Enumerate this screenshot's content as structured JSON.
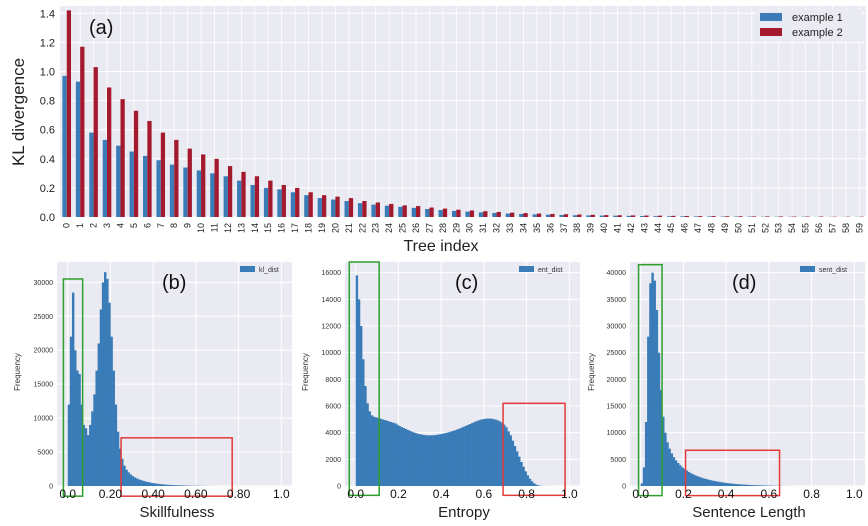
{
  "chart_data": [
    {
      "type": "bar",
      "panel_label": "(a)",
      "xlabel": "Tree index",
      "ylabel": "KL divergence",
      "ylim": [
        0,
        1.45
      ],
      "yticks": [
        "0.0",
        "0.2",
        "0.4",
        "0.6",
        "0.8",
        "1.0",
        "1.2",
        "1.4"
      ],
      "categories": [
        "0",
        "1",
        "2",
        "3",
        "4",
        "5",
        "6",
        "7",
        "8",
        "9",
        "10",
        "11",
        "12",
        "13",
        "14",
        "15",
        "16",
        "17",
        "18",
        "19",
        "20",
        "21",
        "22",
        "23",
        "24",
        "25",
        "26",
        "27",
        "28",
        "29",
        "30",
        "31",
        "32",
        "33",
        "34",
        "35",
        "36",
        "37",
        "38",
        "39",
        "40",
        "41",
        "42",
        "43",
        "44",
        "45",
        "46",
        "47",
        "48",
        "49",
        "50",
        "51",
        "52",
        "53",
        "54",
        "55",
        "56",
        "57",
        "58",
        "59"
      ],
      "series": [
        {
          "name": "example 1",
          "color": "#3a7cb8",
          "values": [
            0.97,
            0.93,
            0.58,
            0.53,
            0.49,
            0.45,
            0.42,
            0.39,
            0.36,
            0.34,
            0.32,
            0.3,
            0.28,
            0.25,
            0.22,
            0.2,
            0.19,
            0.17,
            0.15,
            0.13,
            0.12,
            0.11,
            0.095,
            0.085,
            0.078,
            0.07,
            0.063,
            0.055,
            0.048,
            0.042,
            0.037,
            0.032,
            0.028,
            0.024,
            0.021,
            0.018,
            0.016,
            0.014,
            0.012,
            0.011,
            0.01,
            0.009,
            0.008,
            0.007,
            0.006,
            0.005,
            0.005,
            0.004,
            0.004,
            0.003,
            0.003,
            0.003,
            0.002,
            0.002,
            0.002,
            0.002,
            0.001,
            0.001,
            0.001,
            0.001
          ]
        },
        {
          "name": "example 2",
          "color": "#a31a2e",
          "values": [
            1.42,
            1.17,
            1.03,
            0.89,
            0.81,
            0.73,
            0.66,
            0.58,
            0.53,
            0.47,
            0.43,
            0.4,
            0.35,
            0.31,
            0.28,
            0.25,
            0.22,
            0.2,
            0.17,
            0.15,
            0.14,
            0.13,
            0.11,
            0.1,
            0.09,
            0.08,
            0.075,
            0.065,
            0.058,
            0.05,
            0.045,
            0.04,
            0.035,
            0.03,
            0.027,
            0.024,
            0.021,
            0.019,
            0.017,
            0.015,
            0.013,
            0.012,
            0.011,
            0.01,
            0.009,
            0.008,
            0.007,
            0.006,
            0.006,
            0.005,
            0.005,
            0.004,
            0.004,
            0.004,
            0.003,
            0.003,
            0.003,
            0.002,
            0.002,
            0.002
          ]
        }
      ],
      "legend_position": "top-right",
      "grid": true
    },
    {
      "type": "histogram",
      "panel_label": "(b)",
      "xlabel": "Skillfulness",
      "ylabel": "Frequency",
      "legend": "kl_dist",
      "xlim": [
        -0.05,
        1.05
      ],
      "ylim": [
        0,
        33000
      ],
      "xticks": [
        {
          "value": 0.0,
          "label": "0.0"
        },
        {
          "value": 0.2,
          "label": "0.20"
        },
        {
          "value": 0.4,
          "label": "0.40"
        },
        {
          "value": 0.6,
          "label": "0.60"
        },
        {
          "value": 0.8,
          "label": "0.80"
        },
        {
          "value": 1.0,
          "label": "1.0"
        }
      ],
      "yticks": [
        "0",
        "5000",
        "10000",
        "15000",
        "20000",
        "25000",
        "30000"
      ],
      "bin_start": 0.0,
      "bin_width": 0.01,
      "counts": [
        12000,
        22000,
        28500,
        20000,
        17000,
        16500,
        12000,
        9000,
        8500,
        7500,
        9000,
        11000,
        13500,
        17000,
        21000,
        26000,
        30000,
        31500,
        30500,
        27000,
        22000,
        17000,
        12000,
        8000,
        5500,
        4000,
        3000,
        2400,
        2000,
        1700,
        1450,
        1250,
        1100,
        950,
        850,
        750,
        650,
        580,
        510,
        450,
        400,
        350,
        310,
        270,
        240,
        210,
        185,
        165,
        145,
        130,
        115,
        100,
        90,
        80,
        70,
        60,
        50,
        45,
        40,
        35,
        30,
        25,
        20,
        15,
        10,
        8,
        5,
        3,
        2,
        1
      ],
      "highlight_boxes": [
        {
          "color": "#2ca02c",
          "x0": -0.02,
          "x1": 0.07,
          "y0": -1500,
          "y1": 30500
        },
        {
          "color": "#e23a3a",
          "x0": 0.25,
          "x1": 0.77,
          "y0": -1500,
          "y1": 7100
        }
      ],
      "color": "#3a7cb8",
      "grid": true
    },
    {
      "type": "histogram",
      "panel_label": "(c)",
      "xlabel": "Entropy",
      "ylabel": "Frequency",
      "legend": "ent_dist",
      "xlim": [
        -0.05,
        1.05
      ],
      "ylim": [
        0,
        16800
      ],
      "xticks": [
        {
          "value": 0.0,
          "label": "0.0"
        },
        {
          "value": 0.2,
          "label": "0.2"
        },
        {
          "value": 0.4,
          "label": "0.4"
        },
        {
          "value": 0.6,
          "label": "0.6"
        },
        {
          "value": 0.8,
          "label": "0.8"
        },
        {
          "value": 1.0,
          "label": "1.0"
        }
      ],
      "yticks": [
        "0",
        "2000",
        "4000",
        "6000",
        "8000",
        "10000",
        "12000",
        "14000",
        "16000"
      ],
      "bin_start": 0.0,
      "bin_width": 0.01,
      "counts": [
        15800,
        14000,
        12000,
        9500,
        7500,
        6200,
        5600,
        5300,
        5200,
        5150,
        5100,
        5050,
        5000,
        4950,
        4900,
        4850,
        4800,
        4750,
        4700,
        4600,
        4500,
        4420,
        4350,
        4280,
        4200,
        4130,
        4060,
        4000,
        3950,
        3900,
        3870,
        3840,
        3820,
        3800,
        3800,
        3800,
        3810,
        3830,
        3850,
        3880,
        3910,
        3950,
        3990,
        4030,
        4080,
        4130,
        4180,
        4240,
        4300,
        4370,
        4440,
        4510,
        4580,
        4650,
        4720,
        4790,
        4860,
        4920,
        4970,
        5010,
        5040,
        5060,
        5060,
        5050,
        5020,
        4980,
        4920,
        4850,
        4750,
        4600,
        4400,
        4100,
        3800,
        3400,
        3000,
        2600,
        2200,
        1800,
        1450,
        1100,
        800,
        550,
        350,
        200,
        100,
        40,
        15,
        5,
        2,
        1
      ],
      "highlight_boxes": [
        {
          "color": "#2ca02c",
          "x0": -0.03,
          "x1": 0.11,
          "y0": -700,
          "y1": 16800
        },
        {
          "color": "#e23a3a",
          "x0": 0.69,
          "x1": 0.98,
          "y0": -700,
          "y1": 6200
        }
      ],
      "color": "#3a7cb8",
      "grid": true
    },
    {
      "type": "histogram",
      "panel_label": "(d)",
      "xlabel": "Sentence Length",
      "ylabel": "Frequency",
      "legend": "sent_dist",
      "xlim": [
        -0.05,
        1.05
      ],
      "ylim": [
        0,
        42000
      ],
      "xticks": [
        {
          "value": 0.0,
          "label": "0.0"
        },
        {
          "value": 0.2,
          "label": "0.2"
        },
        {
          "value": 0.4,
          "label": "0.4"
        },
        {
          "value": 0.6,
          "label": "0.6"
        },
        {
          "value": 0.8,
          "label": "0.8"
        },
        {
          "value": 1.0,
          "label": "1.0"
        }
      ],
      "yticks": [
        "0",
        "5000",
        "10000",
        "15000",
        "20000",
        "25000",
        "30000",
        "35000",
        "40000"
      ],
      "bin_start": 0.0,
      "bin_width": 0.01,
      "counts": [
        500,
        3500,
        12000,
        28000,
        38000,
        40000,
        38500,
        33000,
        25000,
        18000,
        13000,
        10000,
        8200,
        7000,
        6100,
        5400,
        4800,
        4300,
        3900,
        3500,
        3200,
        2900,
        2650,
        2400,
        2200,
        2000,
        1850,
        1700,
        1560,
        1440,
        1320,
        1210,
        1110,
        1020,
        940,
        860,
        790,
        720,
        660,
        600,
        550,
        500,
        455,
        415,
        380,
        345,
        315,
        285,
        260,
        235,
        215,
        195,
        175,
        160,
        145,
        130,
        115,
        100,
        90,
        80,
        70,
        60,
        50,
        40,
        30,
        20,
        12,
        6,
        3,
        1
      ],
      "highlight_boxes": [
        {
          "color": "#2ca02c",
          "x0": -0.01,
          "x1": 0.1,
          "y0": -1800,
          "y1": 41500
        },
        {
          "color": "#e23a3a",
          "x0": 0.21,
          "x1": 0.65,
          "y0": -1800,
          "y1": 6700
        }
      ],
      "color": "#3a7cb8",
      "grid": true
    }
  ]
}
